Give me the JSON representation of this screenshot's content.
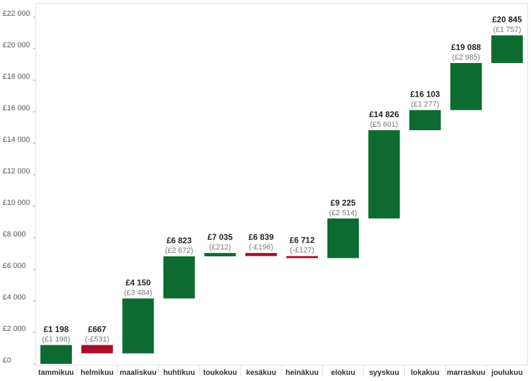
{
  "chart_data": {
    "type": "bar",
    "subtype": "waterfall",
    "title": "",
    "xlabel": "",
    "ylabel": "",
    "ylim": [
      -500,
      22500
    ],
    "yticks": [
      0,
      2000,
      4000,
      6000,
      8000,
      10000,
      12000,
      14000,
      16000,
      18000,
      20000,
      22000
    ],
    "ytick_labels": [
      "£0",
      "£2 000",
      "£4 000",
      "£6 000",
      "£8 000",
      "£10 000",
      "£12 000",
      "£14 000",
      "£16 000",
      "£18 000",
      "£20 000",
      "£22 000"
    ],
    "grid": false,
    "categories": [
      "tammikuu",
      "helmikuu",
      "maaliskuu",
      "huhtikuu",
      "toukokuu",
      "kesäkuu",
      "heinäkuu",
      "elokuu",
      "syyskuu",
      "lokakuu",
      "marraskuu",
      "joulukuu"
    ],
    "running_totals": [
      1198,
      667,
      4150,
      6823,
      7035,
      6839,
      6712,
      9225,
      14826,
      16103,
      19088,
      20845
    ],
    "changes": [
      1198,
      -531,
      3484,
      2672,
      212,
      -196,
      -127,
      2514,
      5601,
      1277,
      2985,
      1757
    ],
    "total_labels": [
      "£1 198",
      "£667",
      "£4 150",
      "£6 823",
      "£7 035",
      "£6 839",
      "£6 712",
      "£9 225",
      "£14 826",
      "£16 103",
      "£19 088",
      "£20 845"
    ],
    "change_labels": [
      "(£1 198)",
      "(-£531)",
      "(£3 484)",
      "(£2 672)",
      "(£212)",
      "(-£196)",
      "(-£127)",
      "(£2 514)",
      "(£5 601)",
      "(£1 277)",
      "(£2 985)",
      "(£1 757)"
    ],
    "colors": {
      "increase": "#0d6b30",
      "decrease": "#a8102a"
    }
  }
}
